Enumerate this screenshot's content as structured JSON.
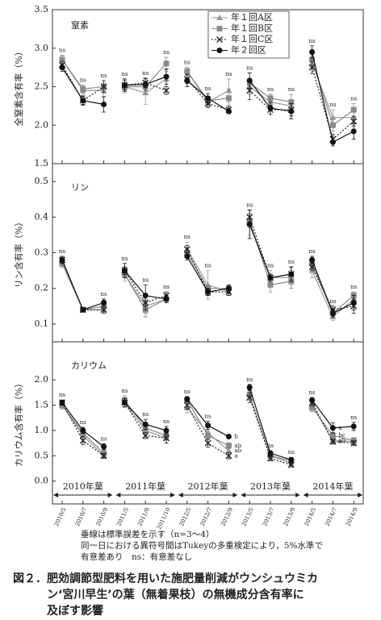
{
  "x_categories": [
    "2010/5",
    "2010/7",
    "2010/9",
    "2011/5",
    "2011/8",
    "2011/10",
    "2012/5",
    "2012/7",
    "2012/9",
    "2013/5",
    "2013/7",
    "2013/9",
    "2014/5",
    "2014/7",
    "2014/9"
  ],
  "series_styles": [
    {
      "name": "年１回A区",
      "color": "#9a9a9a",
      "marker": "triangle",
      "linestyle": "solid"
    },
    {
      "name": "年１回B区",
      "color": "#8a8a8a",
      "marker": "square",
      "linestyle": "solid"
    },
    {
      "name": "年１回C区",
      "color": "#222222",
      "marker": "x",
      "linestyle": "dotted"
    },
    {
      "name": "年２回区",
      "color": "#111111",
      "marker": "circle",
      "linestyle": "solid"
    }
  ],
  "legend": true,
  "chart_data": [
    {
      "type": "line",
      "panel_label": "窒素",
      "ylabel": "全窒素含有率（%）",
      "ylim": [
        1.5,
        3.5
      ],
      "yticks": [
        {
          "value": 1.5,
          "label": "1.5"
        },
        {
          "value": 2,
          "label": "2.0"
        },
        2.5,
        {
          "value": 3,
          "label": "3.0"
        },
        3.5
      ],
      "values": [
        [
          2.85,
          2.45,
          2.45,
          2.5,
          2.42,
          2.6,
          2.7,
          2.3,
          2.45,
          2.5,
          2.3,
          2.25,
          2.8,
          2.1,
          2.1
        ],
        [
          2.85,
          2.47,
          2.5,
          2.5,
          2.5,
          2.8,
          2.7,
          2.32,
          2.35,
          2.55,
          2.35,
          2.3,
          2.85,
          2.0,
          2.2
        ],
        [
          2.78,
          2.32,
          2.5,
          2.52,
          2.55,
          2.45,
          2.6,
          2.28,
          2.2,
          2.45,
          2.2,
          2.2,
          2.75,
          1.82,
          2.05
        ],
        [
          2.75,
          2.32,
          2.27,
          2.52,
          2.53,
          2.63,
          2.58,
          2.35,
          2.18,
          2.58,
          2.22,
          2.18,
          2.95,
          1.78,
          1.92
        ]
      ],
      "errors": [
        [
          0.06,
          0.05,
          0.08,
          0.08,
          0.15,
          0.1,
          0.05,
          0.06,
          0.15,
          0.1,
          0.1,
          0.08,
          0.05,
          0.1,
          0.08
        ],
        [
          0.05,
          0.05,
          0.05,
          0.05,
          0.1,
          0.08,
          0.05,
          0.05,
          0.12,
          0.05,
          0.05,
          0.1,
          0.05,
          0.08,
          0.08
        ],
        [
          0.05,
          0.06,
          0.08,
          0.06,
          0.06,
          0.05,
          0.06,
          0.05,
          0.05,
          0.12,
          0.06,
          0.08,
          0.08,
          0.06,
          0.06
        ],
        [
          0.05,
          0.05,
          0.1,
          0.08,
          0.08,
          0.1,
          0.08,
          0.06,
          0.02,
          0.1,
          0.08,
          0.1,
          0.08,
          0.05,
          0.1
        ]
      ],
      "sig_labels": [
        "ns",
        "ns",
        "ns",
        "ns",
        "ns",
        "ns",
        "ns",
        "ns",
        "ns",
        "ns",
        "ns",
        "ns",
        "ns",
        "ns",
        "ns"
      ]
    },
    {
      "type": "line",
      "panel_label": "リン",
      "ylabel": "リン含有率（%）",
      "ylim": [
        0.05,
        0.55
      ],
      "yticks": [
        0.1,
        0.2,
        0.3,
        0.4,
        0.5
      ],
      "values": [
        [
          0.27,
          0.14,
          0.14,
          0.24,
          0.15,
          0.17,
          0.31,
          0.21,
          0.19,
          0.38,
          0.23,
          0.23,
          0.25,
          0.12,
          0.17
        ],
        [
          0.27,
          0.14,
          0.15,
          0.24,
          0.14,
          0.17,
          0.3,
          0.2,
          0.2,
          0.39,
          0.21,
          0.22,
          0.27,
          0.13,
          0.18
        ],
        [
          0.28,
          0.14,
          0.14,
          0.25,
          0.16,
          0.18,
          0.31,
          0.19,
          0.19,
          0.4,
          0.23,
          0.24,
          0.26,
          0.14,
          0.15
        ],
        [
          0.28,
          0.14,
          0.16,
          0.25,
          0.18,
          0.17,
          0.29,
          0.19,
          0.2,
          0.38,
          0.23,
          0.24,
          0.28,
          0.13,
          0.16
        ]
      ],
      "errors": [
        [
          0.01,
          0.005,
          0.01,
          0.02,
          0.02,
          0.01,
          0.02,
          0.04,
          0.01,
          0.03,
          0.02,
          0.02,
          0.02,
          0.01,
          0.02
        ],
        [
          0.01,
          0.005,
          0.01,
          0.01,
          0.02,
          0.01,
          0.01,
          0.01,
          0.01,
          0.02,
          0.02,
          0.02,
          0.01,
          0.01,
          0.01
        ],
        [
          0.01,
          0.005,
          0.01,
          0.01,
          0.02,
          0.01,
          0.01,
          0.01,
          0.01,
          0.02,
          0.01,
          0.02,
          0.01,
          0.01,
          0.02
        ],
        [
          0.01,
          0.005,
          0.01,
          0.02,
          0.03,
          0.01,
          0.01,
          0.01,
          0.01,
          0.04,
          0.01,
          0.02,
          0.01,
          0.01,
          0.02
        ]
      ],
      "sig_labels": [
        "ns",
        null,
        "ns",
        "ns",
        "ns",
        "ns",
        "ns",
        "ns",
        null,
        "ns",
        "ns",
        "ns",
        "ns",
        "ns",
        "ns"
      ]
    },
    {
      "type": "line",
      "panel_label": "カリウム",
      "ylabel": "カリウム含有率（%）",
      "ylim": [
        -0.45,
        2.75
      ],
      "yticks": [
        {
          "value": 0,
          "label": "0.0"
        },
        0.5,
        {
          "value": 1,
          "label": "1.0"
        },
        1.5,
        {
          "value": 2,
          "label": "2.0"
        }
      ],
      "values": [
        [
          1.5,
          0.9,
          0.5,
          1.55,
          1.0,
          0.85,
          1.45,
          0.95,
          0.6,
          1.7,
          0.5,
          0.35,
          1.5,
          0.8,
          0.78
        ],
        [
          1.5,
          0.95,
          0.55,
          1.6,
          1.05,
          0.9,
          1.6,
          0.9,
          0.7,
          1.7,
          0.5,
          0.4,
          1.45,
          0.9,
          0.8
        ],
        [
          1.55,
          0.8,
          0.5,
          1.55,
          0.9,
          0.85,
          1.5,
          0.75,
          0.5,
          1.65,
          0.45,
          0.32,
          1.55,
          0.78,
          0.75
        ],
        [
          1.55,
          1.0,
          0.68,
          1.55,
          1.12,
          1.0,
          1.62,
          1.1,
          0.88,
          1.85,
          0.55,
          0.42,
          1.6,
          1.05,
          1.08
        ]
      ],
      "errors": [
        [
          0.08,
          0.08,
          0.05,
          0.1,
          0.08,
          0.1,
          0.1,
          0.1,
          0.08,
          0.1,
          0.05,
          0.04,
          0.1,
          0.05,
          0.06
        ],
        [
          0.06,
          0.06,
          0.05,
          0.08,
          0.06,
          0.08,
          0.06,
          0.08,
          0.06,
          0.08,
          0.05,
          0.05,
          0.08,
          0.06,
          0.06
        ],
        [
          0.05,
          0.08,
          0.05,
          0.08,
          0.06,
          0.1,
          0.08,
          0.08,
          0.06,
          0.1,
          0.05,
          0.04,
          0.06,
          0.05,
          0.05
        ],
        [
          0.05,
          0.06,
          0.06,
          0.08,
          0.1,
          0.08,
          0.05,
          0.08,
          0.03,
          0.06,
          0.05,
          0.05,
          0.05,
          0.1,
          0.08
        ]
      ],
      "sig_labels": [
        "ns",
        "ns",
        "ns",
        "ns",
        "ns",
        "ns",
        "ns",
        "ns",
        null,
        "ns",
        "ns",
        "ns",
        "ns",
        null,
        "ns"
      ],
      "letters": [
        {
          "category": "2012/9",
          "labels": [
            "ab",
            "ab",
            "a",
            "b"
          ]
        },
        {
          "category": "2014/7",
          "labels": [
            "ab",
            "bc",
            "a",
            "a"
          ]
        }
      ],
      "year_labels": [
        "2010年葉",
        "2011年葉",
        "2012年葉",
        "2013年葉",
        "2014年葉"
      ]
    }
  ],
  "notes": [
    "垂線は標準誤差を示す（n=3～4）",
    "同一日における異符号間はTukeyの多重検定により，5%水準で",
    "有意差あり　ns：有意差なし"
  ],
  "caption": [
    "図２．肥効調節型肥料を用いた施肥量削減がウンシュウミカ",
    "ン‘宮川早生’の葉（無着果枝）の無機成分含有率に",
    "及ぼす影響"
  ]
}
